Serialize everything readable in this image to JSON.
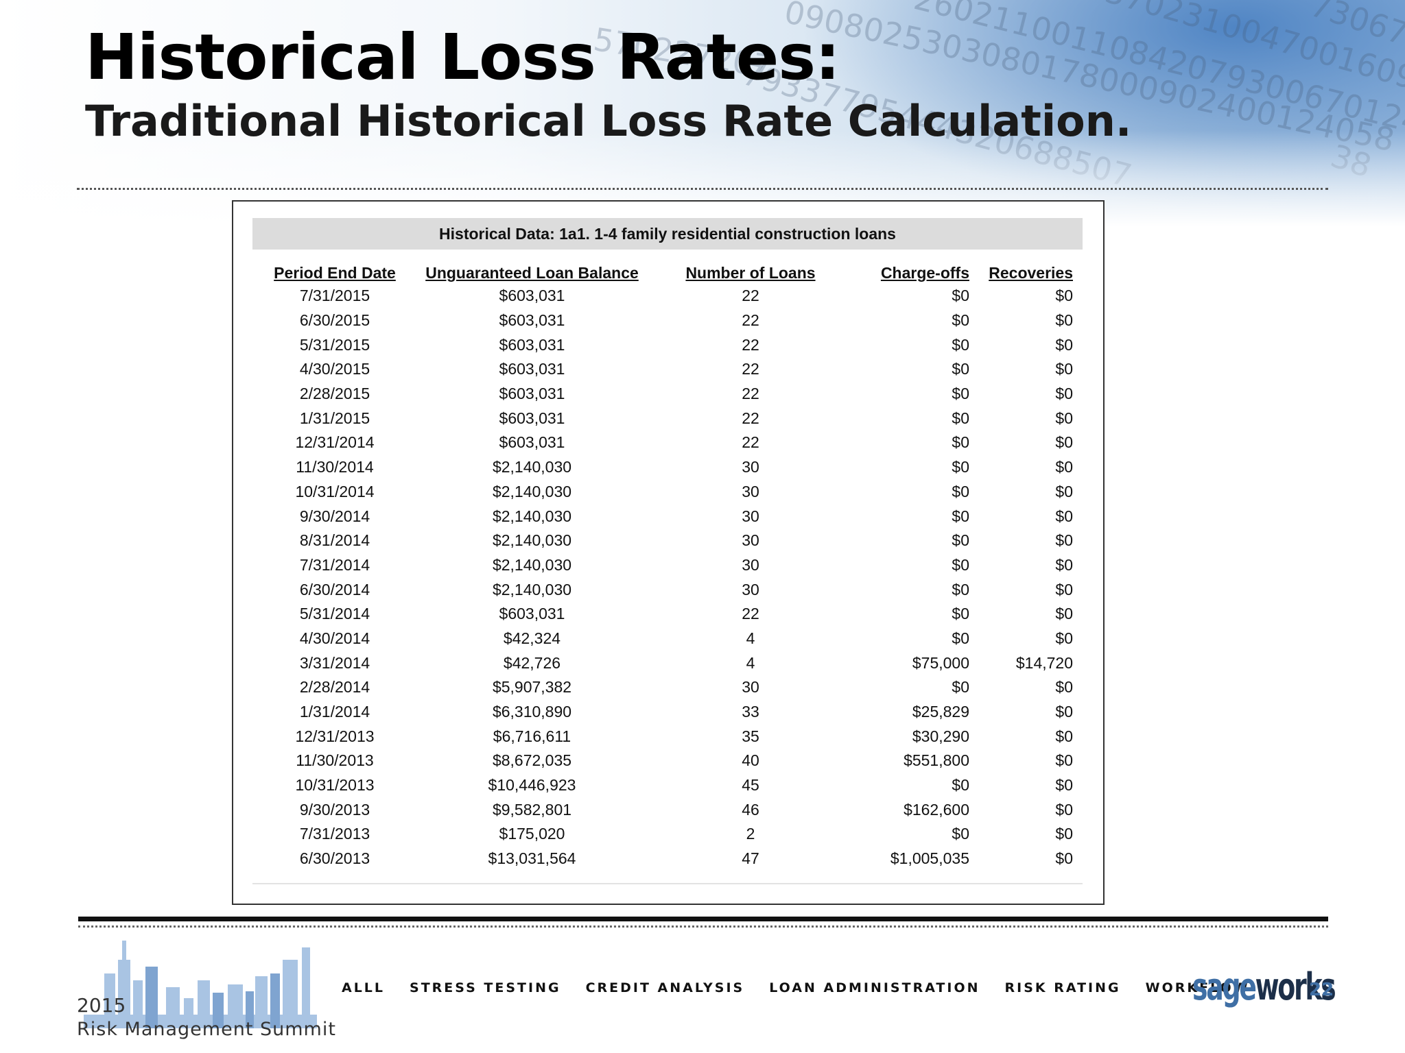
{
  "slide": {
    "title": "Historical Loss Rates:",
    "subtitle": "Traditional Historical Loss Rate Calculation."
  },
  "table": {
    "heading": "Historical Data: 1a1. 1-4 family residential construction loans",
    "columns": [
      "Period End Date",
      "Unguaranteed Loan Balance",
      "Number of Loans",
      "Charge-offs",
      "Recoveries"
    ],
    "rows": [
      [
        "7/31/2015",
        "$603,031",
        "22",
        "$0",
        "$0"
      ],
      [
        "6/30/2015",
        "$603,031",
        "22",
        "$0",
        "$0"
      ],
      [
        "5/31/2015",
        "$603,031",
        "22",
        "$0",
        "$0"
      ],
      [
        "4/30/2015",
        "$603,031",
        "22",
        "$0",
        "$0"
      ],
      [
        "2/28/2015",
        "$603,031",
        "22",
        "$0",
        "$0"
      ],
      [
        "1/31/2015",
        "$603,031",
        "22",
        "$0",
        "$0"
      ],
      [
        "12/31/2014",
        "$603,031",
        "22",
        "$0",
        "$0"
      ],
      [
        "11/30/2014",
        "$2,140,030",
        "30",
        "$0",
        "$0"
      ],
      [
        "10/31/2014",
        "$2,140,030",
        "30",
        "$0",
        "$0"
      ],
      [
        "9/30/2014",
        "$2,140,030",
        "30",
        "$0",
        "$0"
      ],
      [
        "8/31/2014",
        "$2,140,030",
        "30",
        "$0",
        "$0"
      ],
      [
        "7/31/2014",
        "$2,140,030",
        "30",
        "$0",
        "$0"
      ],
      [
        "6/30/2014",
        "$2,140,030",
        "30",
        "$0",
        "$0"
      ],
      [
        "5/31/2014",
        "$603,031",
        "22",
        "$0",
        "$0"
      ],
      [
        "4/30/2014",
        "$42,324",
        "4",
        "$0",
        "$0"
      ],
      [
        "3/31/2014",
        "$42,726",
        "4",
        "$75,000",
        "$14,720"
      ],
      [
        "2/28/2014",
        "$5,907,382",
        "30",
        "$0",
        "$0"
      ],
      [
        "1/31/2014",
        "$6,310,890",
        "33",
        "$25,829",
        "$0"
      ],
      [
        "12/31/2013",
        "$6,716,611",
        "35",
        "$30,290",
        "$0"
      ],
      [
        "11/30/2013",
        "$8,672,035",
        "40",
        "$551,800",
        "$0"
      ],
      [
        "10/31/2013",
        "$10,446,923",
        "45",
        "$0",
        "$0"
      ],
      [
        "9/30/2013",
        "$9,582,801",
        "46",
        "$162,600",
        "$0"
      ],
      [
        "7/31/2013",
        "$175,020",
        "2",
        "$0",
        "$0"
      ],
      [
        "6/30/2013",
        "$13,031,564",
        "47",
        "$1,005,035",
        "$0"
      ]
    ]
  },
  "background_numbers": [
    "570227207",
    "0908025303080178000902400124058",
    "26021100110842079300670124",
    "570231004700160942",
    "730678",
    "79337795444320688507",
    "38"
  ],
  "footer": {
    "summit_year": "2015",
    "summit_name": "Risk Management Summit",
    "nav": [
      "ALLL",
      "STRESS TESTING",
      "CREDIT ANALYSIS",
      "LOAN ADMINISTRATION",
      "RISK RATING",
      "WORKFLOW"
    ],
    "brand_light": "sage",
    "brand_dark": "works",
    "page_number": "22"
  },
  "colors": {
    "brand_blue": "#3f6fa5",
    "brand_dark": "#1c2f49",
    "skyline_blue": "#8fb2da",
    "heading_gray": "#dcdcdc"
  }
}
